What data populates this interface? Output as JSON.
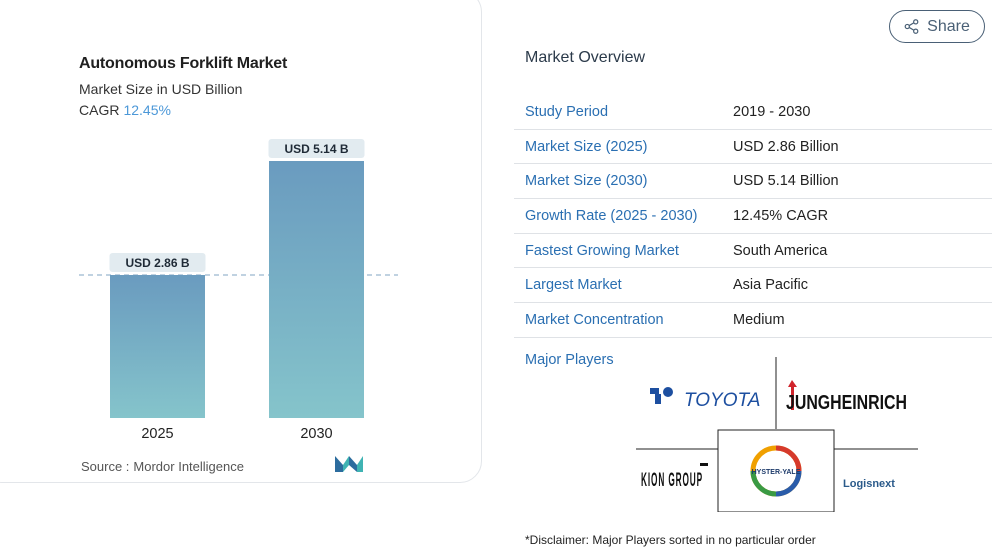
{
  "chart": {
    "title": "Autonomous Forklift Market",
    "subtitle": "Market Size in USD Billion",
    "cagr_label": "CAGR",
    "cagr_value": "12.45%",
    "source_label": "Source :",
    "source_value": "Mordor Intelligence"
  },
  "chart_data": {
    "type": "bar",
    "title": "Autonomous Forklift Market",
    "subtitle": "Market Size in USD Billion",
    "categories": [
      "2025",
      "2030"
    ],
    "values": [
      2.86,
      5.14
    ],
    "data_labels": [
      "USD 2.86 B",
      "USD 5.14 B"
    ],
    "xlabel": "",
    "ylabel": "",
    "ylim": [
      0,
      5.14
    ],
    "grid": false,
    "reference_line": 2.86,
    "colors": {
      "bar_top": "#6a9bbf",
      "bar_bottom": "#85c4cb",
      "label_bg": "#e2ebf0",
      "ref_line": "#9bb6cf"
    }
  },
  "share": {
    "label": "Share",
    "icon": "share-icon"
  },
  "overview": {
    "title": "Market Overview",
    "rows": [
      {
        "key": "Study Period",
        "value": "2019 - 2030"
      },
      {
        "key": "Market Size (2025)",
        "value": "USD 2.86 Billion"
      },
      {
        "key": "Market Size (2030)",
        "value": "USD 5.14 Billion"
      },
      {
        "key": "Growth Rate (2025 - 2030)",
        "value": "12.45% CAGR"
      },
      {
        "key": "Fastest Growing Market",
        "value": "South America"
      },
      {
        "key": "Largest Market",
        "value": "Asia Pacific"
      },
      {
        "key": "Market Concentration",
        "value": "Medium"
      }
    ],
    "players_label": "Major Players",
    "players": [
      "TOYOTA",
      "JUNGHEINRICH",
      "KION GROUP",
      "HYSTER-YALE",
      "Logisnext"
    ],
    "disclaimer": "*Disclaimer: Major Players sorted in no particular order"
  },
  "colors": {
    "accent": "#2a6fb2",
    "cagr": "#4c98d8",
    "share_border": "#4a6076"
  }
}
